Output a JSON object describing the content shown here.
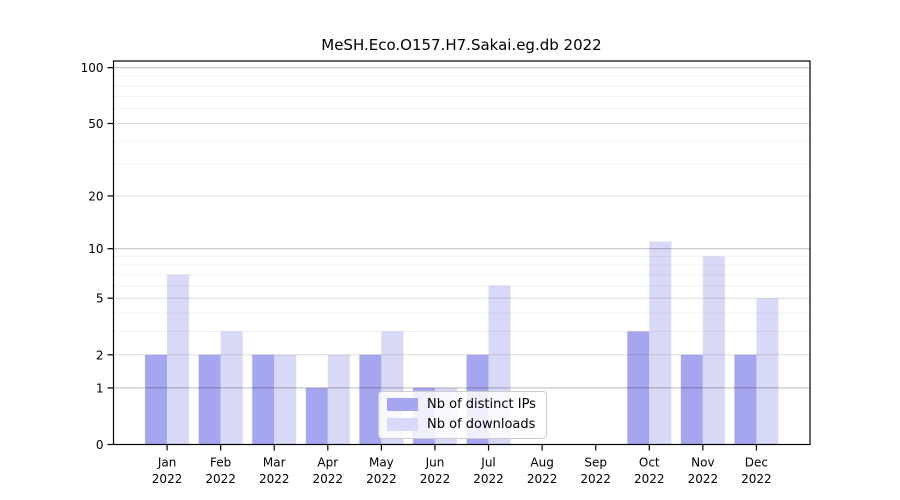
{
  "figure": {
    "background": "#ffffff"
  },
  "chart_data": {
    "type": "bar",
    "title": "MeSH.Eco.O157.H7.Sakai.eg.db 2022",
    "categories": [
      "Jan 2022",
      "Feb 2022",
      "Mar 2022",
      "Apr 2022",
      "May 2022",
      "Jun 2022",
      "Jul 2022",
      "Aug 2022",
      "Sep 2022",
      "Oct 2022",
      "Nov 2022",
      "Dec 2022"
    ],
    "series": [
      {
        "name": "Nb of distinct IPs",
        "color": "#a5a5f0",
        "values": [
          2,
          2,
          2,
          1,
          2,
          1,
          2,
          0,
          0,
          3,
          2,
          2
        ]
      },
      {
        "name": "Nb of downloads",
        "color": "#d8d8f7",
        "values": [
          7,
          3,
          2,
          2,
          3,
          1,
          6,
          0,
          0,
          11,
          9,
          5
        ]
      }
    ],
    "xlabel": "",
    "ylabel": "",
    "yscale": "log1p",
    "ylim": [
      0,
      110
    ],
    "y_ticks": [
      0,
      1,
      2,
      5,
      10,
      20,
      50,
      100
    ],
    "y_gridlines_major": [
      1,
      10,
      100
    ],
    "y_gridlines_mid": [
      2,
      5,
      20,
      50
    ],
    "y_gridlines_minor": [
      3,
      4,
      6,
      7,
      8,
      9,
      30,
      40,
      60,
      70,
      80,
      90
    ],
    "grid": true,
    "legend_position": "lower center",
    "axis_color": "#000000",
    "text_color": "#000000"
  }
}
